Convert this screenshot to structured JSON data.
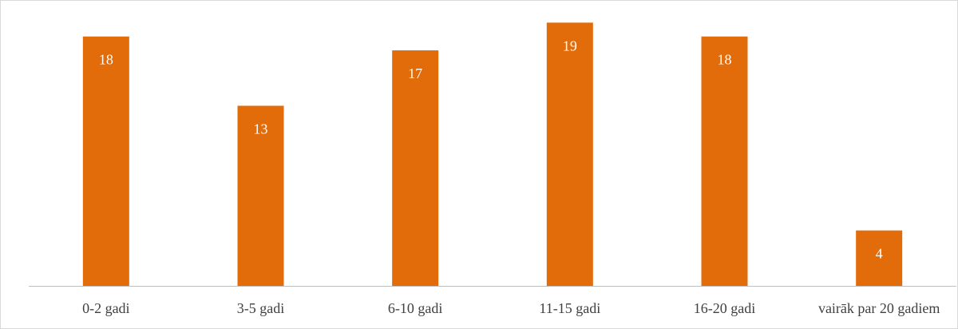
{
  "chart_data": {
    "type": "bar",
    "title": "",
    "xlabel": "",
    "ylabel": "",
    "categories": [
      "0-2 gadi",
      "3-5 gadi",
      "6-10 gadi",
      "11-15 gadi",
      "16-20 gadi",
      "vairāk par 20 gadiem"
    ],
    "values": [
      18,
      13,
      17,
      19,
      18,
      4
    ],
    "ylim": [
      0,
      20
    ],
    "grid": false,
    "legend": "none",
    "data_labels": "inside-end",
    "bar_color": "#E36C0A",
    "label_color": "#FFFFFF",
    "axis_color": "#BFBFBF"
  }
}
